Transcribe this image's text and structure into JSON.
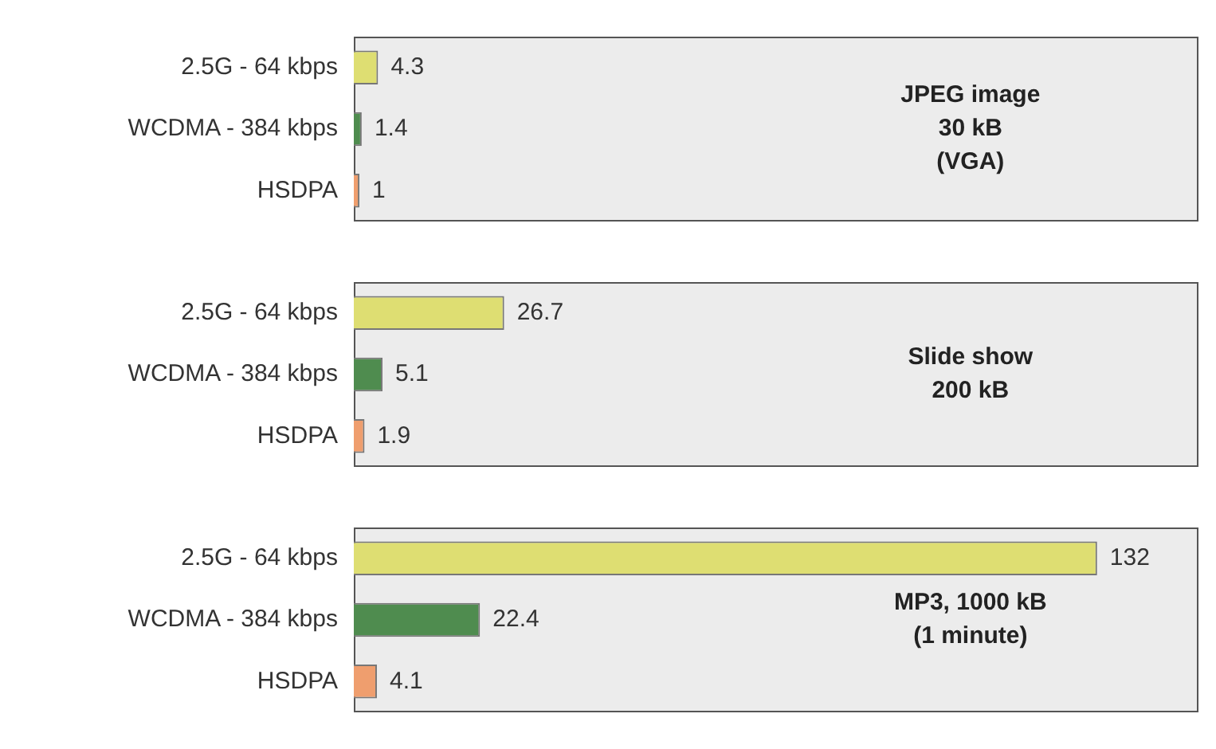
{
  "chart_data": [
    {
      "type": "bar",
      "orientation": "horizontal",
      "categories": [
        "2.5G - 64 kbps",
        "WCDMA - 384 kbps",
        "HSDPA"
      ],
      "values": [
        4.3,
        1.4,
        1
      ],
      "colors": [
        "#dede72",
        "#4f8c4f",
        "#ef9e6e"
      ],
      "xlim": [
        0,
        150
      ],
      "tick_labels": "y",
      "data_labels": true,
      "legend": false,
      "annotations": [
        "JPEG image",
        "30 kB",
        "(VGA)"
      ]
    },
    {
      "type": "bar",
      "orientation": "horizontal",
      "categories": [
        "2.5G - 64 kbps",
        "WCDMA - 384 kbps",
        "HSDPA"
      ],
      "values": [
        26.7,
        5.1,
        1.9
      ],
      "colors": [
        "#dede72",
        "#4f8c4f",
        "#ef9e6e"
      ],
      "xlim": [
        0,
        150
      ],
      "tick_labels": "y",
      "data_labels": true,
      "legend": false,
      "annotations": [
        "Slide show",
        "200 kB"
      ]
    },
    {
      "type": "bar",
      "orientation": "horizontal",
      "categories": [
        "2.5G - 64 kbps",
        "WCDMA - 384 kbps",
        "HSDPA"
      ],
      "values": [
        132,
        22.4,
        4.1
      ],
      "colors": [
        "#dede72",
        "#4f8c4f",
        "#ef9e6e"
      ],
      "xlim": [
        0,
        150
      ],
      "tick_labels": "y",
      "data_labels": true,
      "legend": false,
      "annotations": [
        "MP3, 1000 kB",
        "(1 minute)"
      ]
    }
  ]
}
